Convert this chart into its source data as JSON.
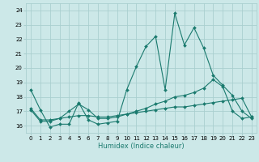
{
  "title": "",
  "xlabel": "Humidex (Indice chaleur)",
  "bg_color": "#cce8e8",
  "grid_color": "#aacfcf",
  "line_color": "#1a7a6e",
  "xlim": [
    -0.5,
    23.5
  ],
  "ylim": [
    15.5,
    24.5
  ],
  "yticks": [
    16,
    17,
    18,
    19,
    20,
    21,
    22,
    23,
    24
  ],
  "xticks": [
    0,
    1,
    2,
    3,
    4,
    5,
    6,
    7,
    8,
    9,
    10,
    11,
    12,
    13,
    14,
    15,
    16,
    17,
    18,
    19,
    20,
    21,
    22,
    23
  ],
  "line1_x": [
    0,
    1,
    2,
    3,
    4,
    5,
    6,
    7,
    8,
    9,
    10,
    11,
    12,
    13,
    14,
    15,
    16,
    17,
    18,
    19,
    20,
    21,
    22,
    23
  ],
  "line1_y": [
    18.5,
    17.1,
    15.9,
    16.1,
    16.1,
    17.6,
    16.4,
    16.1,
    16.2,
    16.3,
    18.5,
    20.1,
    21.5,
    22.2,
    18.5,
    23.8,
    21.6,
    22.8,
    21.4,
    19.5,
    18.8,
    18.1,
    17.0,
    16.5
  ],
  "line2_x": [
    0,
    1,
    2,
    3,
    4,
    5,
    6,
    7,
    8,
    9,
    10,
    11,
    12,
    13,
    14,
    15,
    16,
    17,
    18,
    19,
    20,
    21,
    22,
    23
  ],
  "line2_y": [
    17.1,
    16.3,
    16.3,
    16.5,
    17.0,
    17.5,
    17.1,
    16.5,
    16.5,
    16.6,
    16.8,
    17.0,
    17.2,
    17.5,
    17.7,
    18.0,
    18.1,
    18.3,
    18.6,
    19.2,
    18.7,
    17.0,
    16.5,
    16.6
  ],
  "line3_x": [
    0,
    1,
    2,
    3,
    4,
    5,
    6,
    7,
    8,
    9,
    10,
    11,
    12,
    13,
    14,
    15,
    16,
    17,
    18,
    19,
    20,
    21,
    22,
    23
  ],
  "line3_y": [
    17.2,
    16.4,
    16.4,
    16.5,
    16.6,
    16.7,
    16.7,
    16.6,
    16.6,
    16.7,
    16.8,
    16.9,
    17.0,
    17.1,
    17.2,
    17.3,
    17.3,
    17.4,
    17.5,
    17.6,
    17.7,
    17.8,
    17.9,
    16.6
  ],
  "tick_fontsize": 5,
  "xlabel_fontsize": 6,
  "linewidth": 0.8,
  "markersize": 2.0
}
